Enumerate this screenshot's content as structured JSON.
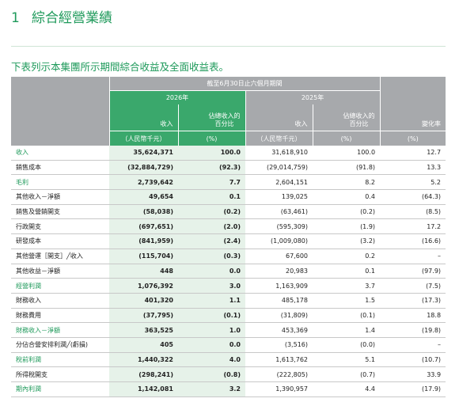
{
  "header": {
    "number": "1",
    "title": "綜合經營業績"
  },
  "subtitle": "下表列示本集團所示期間綜合收益及全面收益表。",
  "table": {
    "period": "截至6月30日止六個月期間",
    "years": [
      "2026年",
      "2025年"
    ],
    "column_headers": [
      "收入",
      "佔總收入的百分比",
      "收入",
      "佔總收入的百分比",
      "變化率"
    ],
    "units": [
      "（人民幣千元）",
      "(%)",
      "（人民幣千元）",
      "(%)",
      "(%)"
    ],
    "rows": [
      [
        "收入",
        "35,624,371",
        "100.0",
        "31,618,910",
        "100.0",
        "12.7"
      ],
      [
        "銷售成本",
        "(32,884,729)",
        "(92.3)",
        "(29,014,759)",
        "(91.8)",
        "13.3"
      ],
      [
        "毛利",
        "2,739,642",
        "7.7",
        "2,604,151",
        "8.2",
        "5.2"
      ],
      [
        "其他收入－淨額",
        "49,654",
        "0.1",
        "139,025",
        "0.4",
        "(64.3)"
      ],
      [
        "銷售及營銷開支",
        "(58,038)",
        "(0.2)",
        "(63,461)",
        "(0.2)",
        "(8.5)"
      ],
      [
        "行政開支",
        "(697,651)",
        "(2.0)",
        "(595,309)",
        "(1.9)",
        "17.2"
      ],
      [
        "研發成本",
        "(841,959)",
        "(2.4)",
        "(1,009,080)",
        "(3.2)",
        "(16.6)"
      ],
      [
        "其他營運［開支］╱收入",
        "(115,704)",
        "(0.3)",
        "67,600",
        "0.2",
        "–"
      ],
      [
        "其他收益－淨額",
        "448",
        "0.0",
        "20,983",
        "0.1",
        "(97.9)"
      ],
      [
        "經營利潤",
        "1,076,392",
        "3.0",
        "1,163,909",
        "3.7",
        "(7.5)"
      ],
      [
        "財務收入",
        "401,320",
        "1.1",
        "485,178",
        "1.5",
        "(17.3)"
      ],
      [
        "財務費用",
        "(37,795)",
        "(0.1)",
        "(31,809)",
        "(0.1)",
        "18.8"
      ],
      [
        "財務收入－淨額",
        "363,525",
        "1.0",
        "453,369",
        "1.4",
        "(19.8)"
      ],
      [
        "分佔合營安排利潤╱(虧損)",
        "405",
        "0.0",
        "(3,516)",
        "(0.0)",
        "–"
      ],
      [
        "稅前利潤",
        "1,440,322",
        "4.0",
        "1,613,762",
        "5.1",
        "(10.7)"
      ],
      [
        "所得稅開支",
        "(298,241)",
        "(0.8)",
        "(222,805)",
        "(0.7)",
        "33.9"
      ],
      [
        "期內利潤",
        "1,142,081",
        "3.2",
        "1,390,957",
        "4.4",
        "(17.9)"
      ]
    ]
  }
}
